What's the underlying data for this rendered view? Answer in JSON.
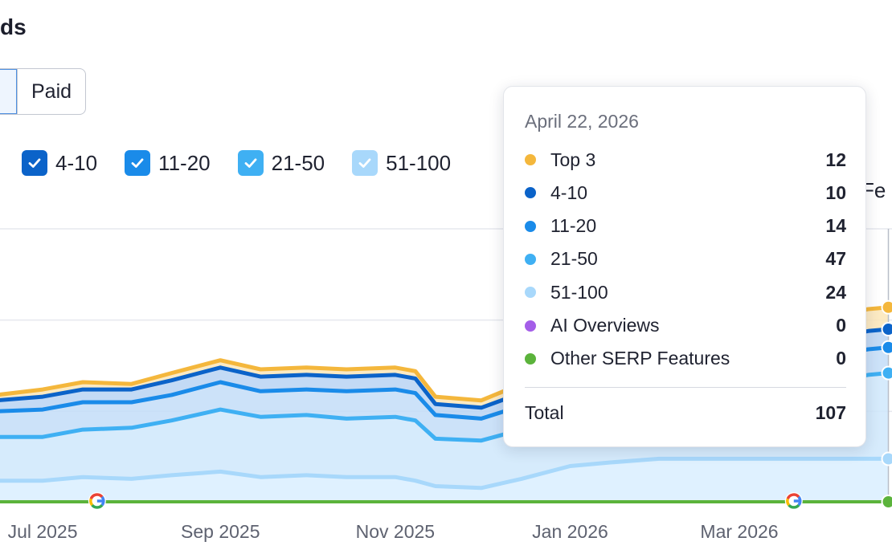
{
  "header": {
    "title": "ds"
  },
  "segment": {
    "active_label": "",
    "paid_label": "Paid"
  },
  "legend": {
    "items": [
      {
        "label": "4-10",
        "color": "#0b63c9"
      },
      {
        "label": "11-20",
        "color": "#1a8be9"
      },
      {
        "label": "21-50",
        "color": "#3fb0f3"
      },
      {
        "label": "51-100",
        "color": "#a8d8fb"
      }
    ],
    "tail": "' Fe"
  },
  "tooltip": {
    "date": "April 22, 2026",
    "rows": [
      {
        "label": "Top 3",
        "value": "12",
        "color": "#f4b73c"
      },
      {
        "label": "4-10",
        "value": "10",
        "color": "#0b63c9"
      },
      {
        "label": "11-20",
        "value": "14",
        "color": "#1a8be9"
      },
      {
        "label": "21-50",
        "value": "47",
        "color": "#3fb0f3"
      },
      {
        "label": "51-100",
        "value": "24",
        "color": "#a8d8fb"
      },
      {
        "label": "AI Overviews",
        "value": "0",
        "color": "#a45ee8"
      },
      {
        "label": "Other SERP Features",
        "value": "0",
        "color": "#5bb33b"
      }
    ],
    "total_label": "Total",
    "total_value": "107"
  },
  "chart_data": {
    "type": "area",
    "stacked": true,
    "x_tick_labels": [
      "Jul 2025",
      "Sep 2025",
      "Nov 2025",
      "Jan 2026",
      "Mar 2026"
    ],
    "x": [
      "2025-05-15",
      "2025-06-01",
      "2025-06-15",
      "2025-07-01",
      "2025-07-15",
      "2025-08-01",
      "2025-08-15",
      "2025-09-01",
      "2025-09-15",
      "2025-10-01",
      "2025-10-15",
      "2025-11-01",
      "2025-11-08",
      "2025-11-15",
      "2025-12-01",
      "2025-12-15",
      "2026-01-01",
      "2026-01-15",
      "2026-02-01",
      "2026-02-15",
      "2026-03-01",
      "2026-03-15",
      "2026-04-01",
      "2026-04-15",
      "2026-04-22"
    ],
    "series": [
      {
        "name": "51-100",
        "color": "#a8d8fb",
        "values": [
          11,
          11,
          12,
          12,
          14,
          13,
          15,
          17,
          14,
          15,
          14,
          14,
          12,
          9,
          8,
          13,
          20,
          22,
          24,
          24,
          24,
          24,
          24,
          24,
          24
        ]
      },
      {
        "name": "21-50",
        "color": "#3fb0f3",
        "values": [
          20,
          21,
          24,
          24,
          26,
          28,
          30,
          34,
          33,
          33,
          32,
          33,
          33,
          26,
          26,
          27,
          30,
          34,
          40,
          42,
          44,
          43,
          42,
          46,
          47
        ]
      },
      {
        "name": "11-20",
        "color": "#1a8be9",
        "values": [
          13,
          13,
          14,
          15,
          15,
          14,
          14,
          15,
          14,
          14,
          15,
          15,
          15,
          13,
          12,
          13,
          14,
          14,
          14,
          14,
          14,
          14,
          14,
          14,
          14
        ]
      },
      {
        "name": "4-10",
        "color": "#0b63c9",
        "values": [
          6,
          6,
          6,
          7,
          7,
          7,
          8,
          8,
          8,
          8,
          8,
          8,
          8,
          6,
          6,
          7,
          8,
          9,
          9,
          10,
          10,
          10,
          10,
          10,
          10
        ]
      },
      {
        "name": "Top 3",
        "color": "#f4b73c",
        "values": [
          3,
          3,
          3,
          4,
          4,
          3,
          4,
          4,
          4,
          4,
          4,
          4,
          4,
          4,
          4,
          5,
          8,
          10,
          11,
          11,
          12,
          12,
          12,
          12,
          12
        ]
      },
      {
        "name": "Other SERP Features",
        "color": "#5bb33b",
        "values": [
          0,
          0,
          0,
          0,
          0,
          0,
          0,
          0,
          0,
          0,
          0,
          0,
          0,
          0,
          0,
          0,
          0,
          0,
          0,
          0,
          0,
          0,
          0,
          0,
          0
        ]
      }
    ],
    "annotations": [
      {
        "x": "2025-07-20",
        "label": "Google update"
      },
      {
        "x": "2026-03-20",
        "label": "Google update"
      }
    ],
    "grid": true,
    "legend": "top"
  }
}
